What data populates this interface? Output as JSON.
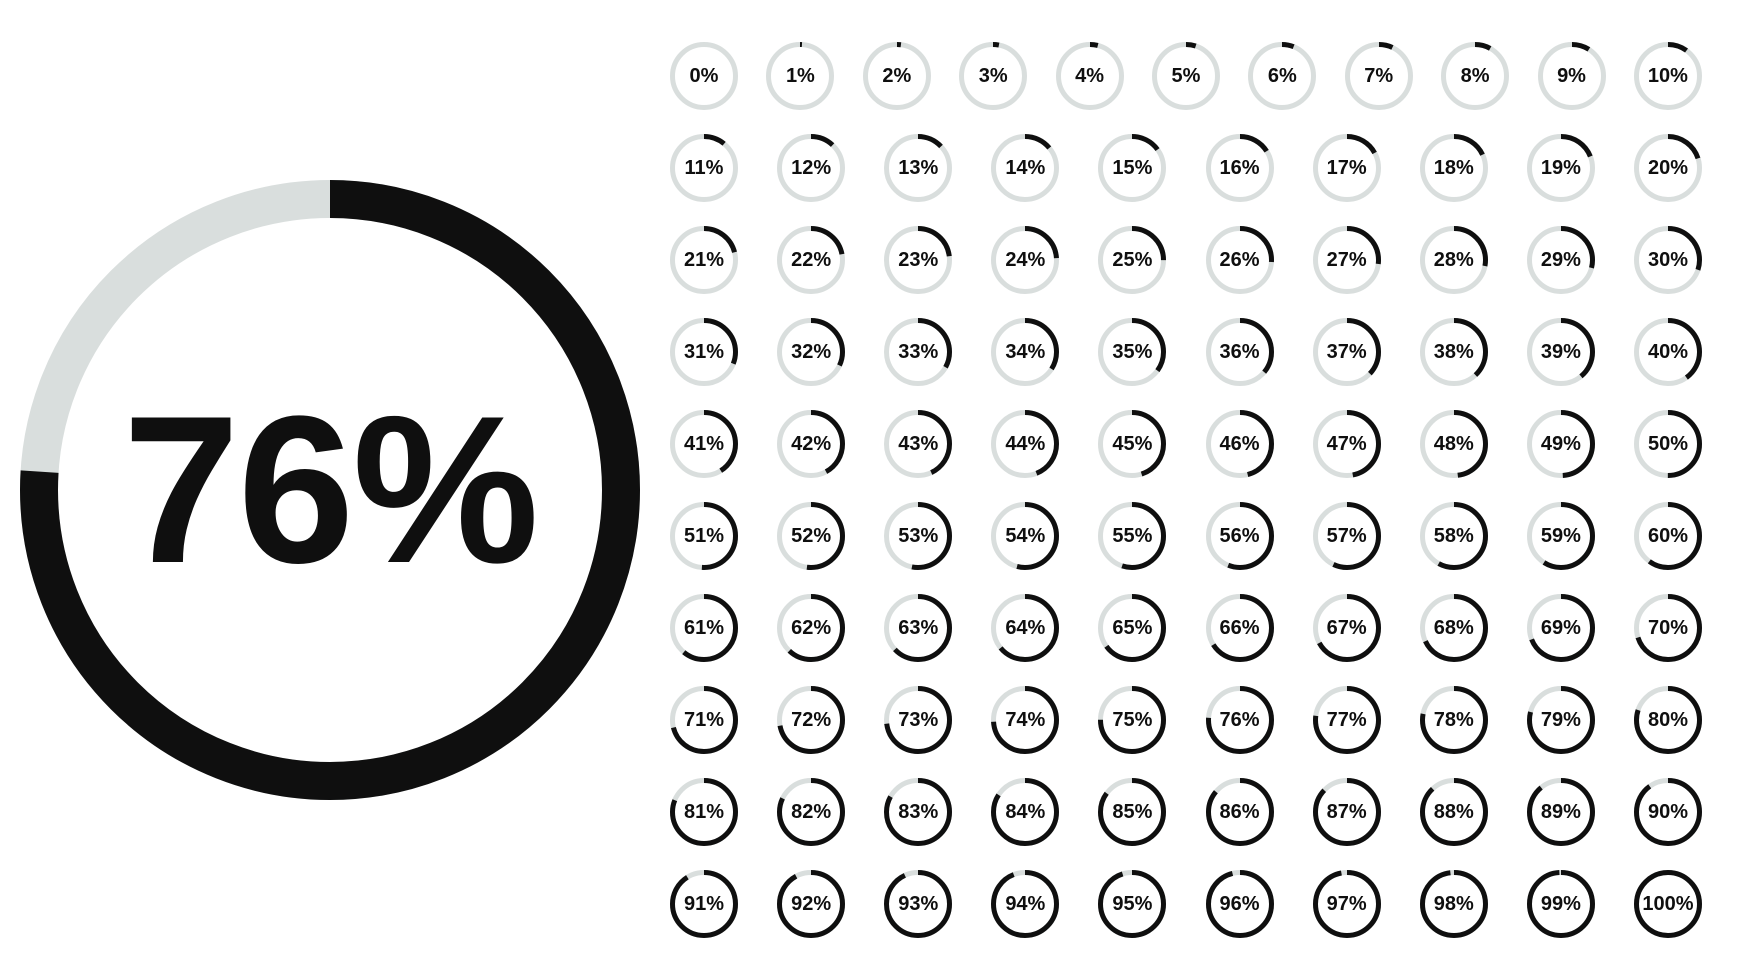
{
  "colors": {
    "progress": "#0f0f0f",
    "track": "#d9dedd",
    "text": "#0f0f0f",
    "background": "#ffffff"
  },
  "large": {
    "value": 76,
    "label": "76%",
    "diameter": 620,
    "stroke_width": 38,
    "font_size": 210
  },
  "small": {
    "diameter": 68,
    "stroke_width": 5,
    "font_size": 20,
    "count": 101,
    "rows": 10,
    "first_row_cols": 11,
    "other_row_cols": 10
  },
  "grid_values": [
    [
      0,
      1,
      2,
      3,
      4,
      5,
      6,
      7,
      8,
      9,
      10
    ],
    [
      11,
      12,
      13,
      14,
      15,
      16,
      17,
      18,
      19,
      20
    ],
    [
      21,
      22,
      23,
      24,
      25,
      26,
      27,
      28,
      29,
      30
    ],
    [
      31,
      32,
      33,
      34,
      35,
      36,
      37,
      38,
      39,
      40
    ],
    [
      41,
      42,
      43,
      44,
      45,
      46,
      47,
      48,
      49,
      50
    ],
    [
      51,
      52,
      53,
      54,
      55,
      56,
      57,
      58,
      59,
      60
    ],
    [
      61,
      62,
      63,
      64,
      65,
      66,
      67,
      68,
      69,
      70
    ],
    [
      71,
      72,
      73,
      74,
      75,
      76,
      77,
      78,
      79,
      80
    ],
    [
      81,
      82,
      83,
      84,
      85,
      86,
      87,
      88,
      89,
      90
    ],
    [
      91,
      92,
      93,
      94,
      95,
      96,
      97,
      98,
      99,
      100
    ]
  ]
}
